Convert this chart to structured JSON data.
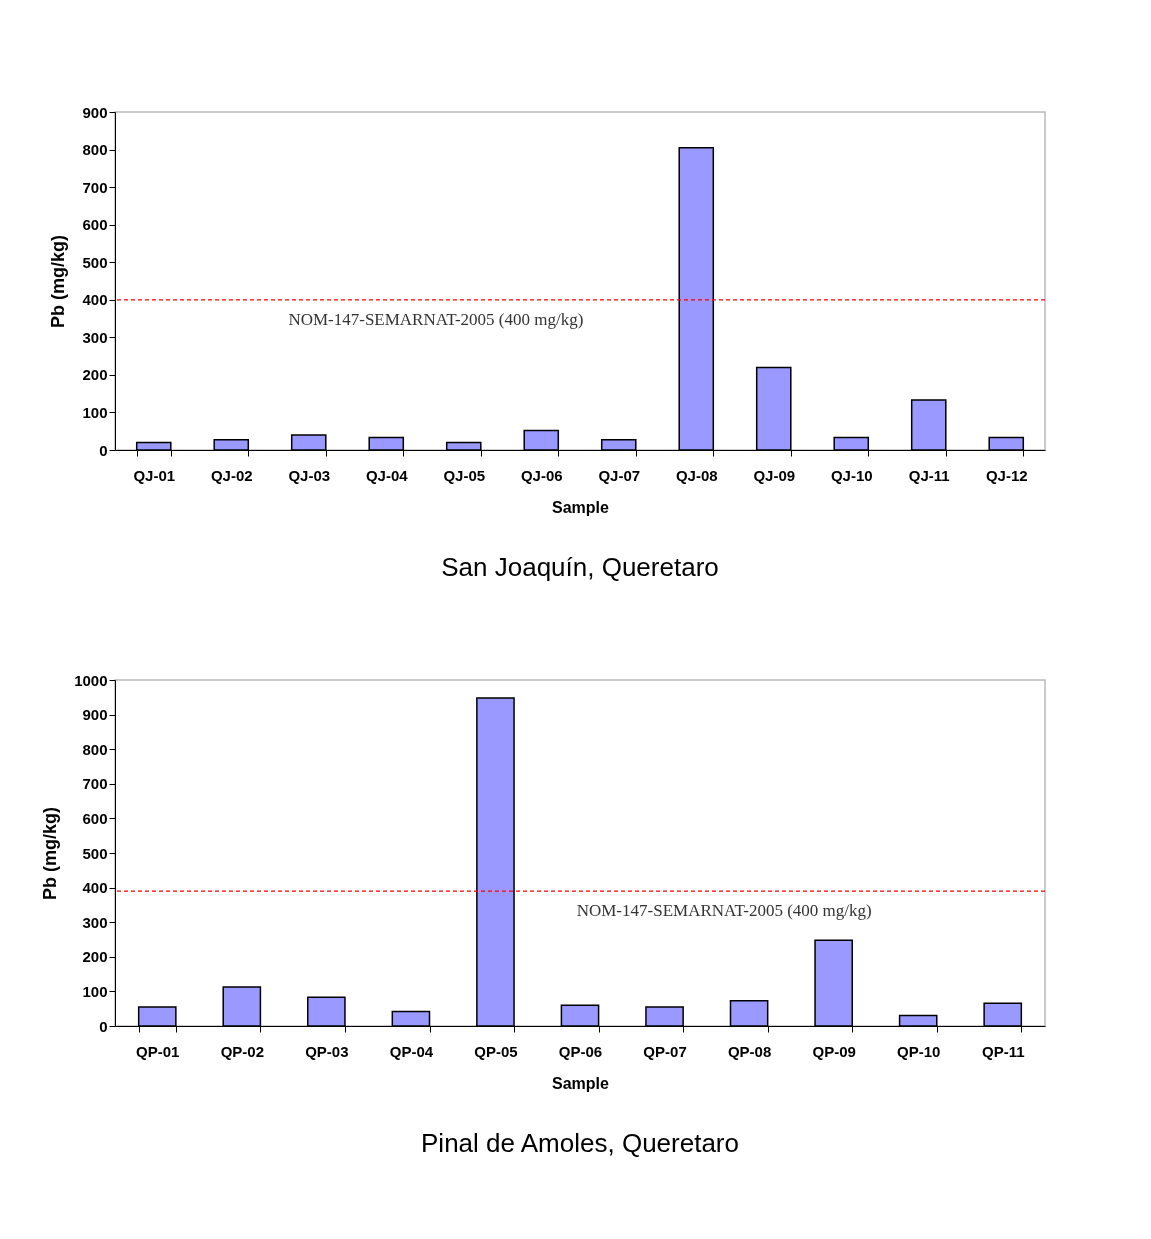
{
  "chart_data": [
    {
      "type": "bar",
      "title": "San Joaquín, Queretaro",
      "xlabel": "Sample",
      "ylabel": "Pb (mg/kg)",
      "categories": [
        "QJ-01",
        "QJ-02",
        "QJ-03",
        "QJ-04",
        "QJ-05",
        "QJ-06",
        "QJ-07",
        "QJ-08",
        "QJ-09",
        "QJ-10",
        "QJ-11",
        "QJ-12"
      ],
      "values": [
        20,
        27,
        40,
        33,
        20,
        52,
        27,
        805,
        220,
        33,
        133,
        33
      ],
      "color": "#9999ff",
      "ylim": [
        0,
        900
      ],
      "yticks": [
        0,
        100,
        200,
        300,
        400,
        500,
        600,
        700,
        800,
        900
      ],
      "grid": false,
      "ref_lines": [
        {
          "axis": "y",
          "value": 400,
          "label": "NOM-147-SEMARNAT-2005 (400 mg/kg)",
          "color": "#ff0000",
          "line_style": "dashed"
        }
      ]
    },
    {
      "type": "bar",
      "title": "Pinal de Amoles, Queretaro",
      "xlabel": "Sample",
      "ylabel": "Pb (mg/kg)",
      "categories": [
        "QP-01",
        "QP-02",
        "QP-03",
        "QP-04",
        "QP-05",
        "QP-06",
        "QP-07",
        "QP-08",
        "QP-09",
        "QP-10",
        "QP-11"
      ],
      "values": [
        55,
        113,
        83,
        42,
        948,
        60,
        55,
        73,
        248,
        30,
        66
      ],
      "color": "#9999ff",
      "ylim": [
        0,
        1000
      ],
      "yticks": [
        0,
        100,
        200,
        300,
        400,
        500,
        600,
        700,
        800,
        900,
        1000
      ],
      "grid": false,
      "ref_lines": [
        {
          "axis": "y",
          "value": 390,
          "label": "NOM-147-SEMARNAT-2005 (400 mg/kg)",
          "color": "#ff0000",
          "line_style": "dashed"
        }
      ]
    }
  ]
}
